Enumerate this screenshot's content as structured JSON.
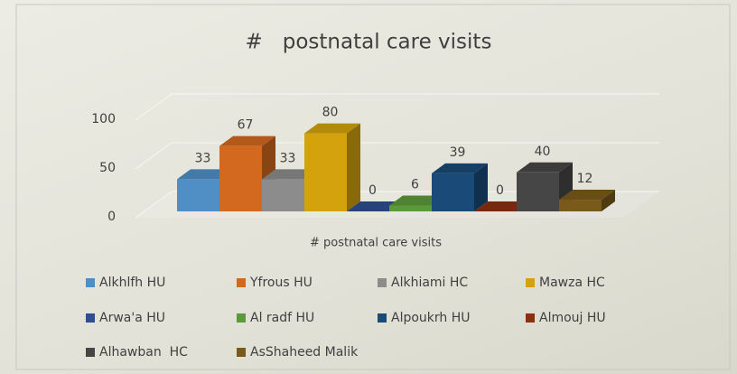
{
  "chart_data": {
    "type": "bar3d",
    "title": "#   postnatal care visits",
    "categories": [
      "# postnatal care visits"
    ],
    "ylim": [
      0,
      100
    ],
    "yticks": [
      0,
      50,
      100
    ],
    "grid": true,
    "series": [
      {
        "name": "Alkhlfh HU",
        "color": "#4f8fc6",
        "values": [
          33
        ]
      },
      {
        "name": "Yfrous HU",
        "color": "#d2691e",
        "values": [
          67
        ]
      },
      {
        "name": "Alkhiami HC",
        "color": "#8c8c8c",
        "values": [
          33
        ]
      },
      {
        "name": "Mawza HC",
        "color": "#d4a20c",
        "values": [
          80
        ]
      },
      {
        "name": "Arwa'a HU",
        "color": "#2e4f8f",
        "values": [
          0
        ]
      },
      {
        "name": "Al radf HU",
        "color": "#5a9a3a",
        "values": [
          6
        ]
      },
      {
        "name": "Alpoukrh HU",
        "color": "#1a4a78",
        "values": [
          39
        ]
      },
      {
        "name": "Almouj HU",
        "color": "#8b3010",
        "values": [
          0
        ]
      },
      {
        "name": "Alhawban  HC",
        "color": "#464646",
        "values": [
          40
        ]
      },
      {
        "name": "AsShaheed Malik",
        "color": "#7a5a1a",
        "values": [
          12
        ]
      }
    ]
  }
}
